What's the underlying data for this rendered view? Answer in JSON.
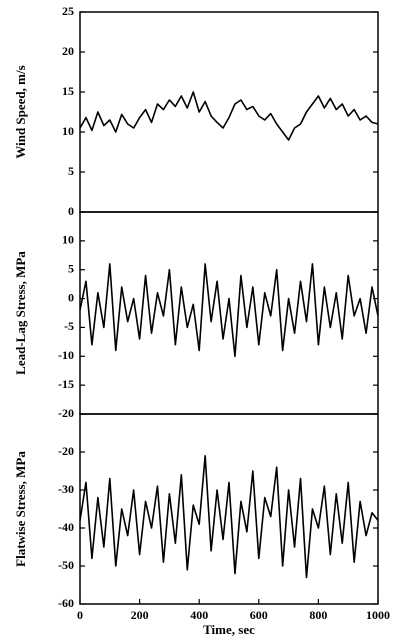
{
  "chart_data": [
    {
      "type": "line",
      "ylabel": "Wind Speed, m/s",
      "color": "#000000",
      "x": [
        0,
        20,
        40,
        60,
        80,
        100,
        120,
        140,
        160,
        180,
        200,
        220,
        240,
        260,
        280,
        300,
        320,
        340,
        360,
        380,
        400,
        420,
        440,
        460,
        480,
        500,
        520,
        540,
        560,
        580,
        600,
        620,
        640,
        660,
        680,
        700,
        720,
        740,
        760,
        780,
        800,
        820,
        840,
        860,
        880,
        900,
        920,
        940,
        960,
        980,
        1000
      ],
      "values": [
        10.5,
        11.8,
        10.2,
        12.5,
        10.8,
        11.5,
        10.0,
        12.2,
        11.0,
        10.5,
        11.8,
        12.8,
        11.2,
        13.5,
        12.8,
        14.0,
        13.2,
        14.5,
        13.0,
        15.0,
        12.5,
        13.8,
        12.0,
        11.2,
        10.5,
        11.8,
        13.5,
        14.0,
        12.8,
        13.2,
        12.0,
        11.5,
        12.3,
        11.0,
        10.0,
        9.0,
        10.5,
        11.0,
        12.5,
        13.5,
        14.5,
        13.0,
        14.2,
        12.8,
        13.5,
        12.0,
        12.8,
        11.5,
        12.0,
        11.2,
        11.0
      ],
      "xlim": [
        0,
        1000
      ],
      "ylim": [
        0,
        25
      ],
      "yticks": [
        0,
        5,
        10,
        15,
        20,
        25
      ]
    },
    {
      "type": "line",
      "ylabel": "Lead-Lag Stress, MPa",
      "color": "#000000",
      "x": [
        0,
        20,
        40,
        60,
        80,
        100,
        120,
        140,
        160,
        180,
        200,
        220,
        240,
        260,
        280,
        300,
        320,
        340,
        360,
        380,
        400,
        420,
        440,
        460,
        480,
        500,
        520,
        540,
        560,
        580,
        600,
        620,
        640,
        660,
        680,
        700,
        720,
        740,
        760,
        780,
        800,
        820,
        840,
        860,
        880,
        900,
        920,
        940,
        960,
        980,
        1000
      ],
      "values": [
        -2,
        3,
        -8,
        1,
        -5,
        6,
        -9,
        2,
        -4,
        0,
        -7,
        4,
        -6,
        1,
        -3,
        5,
        -8,
        2,
        -5,
        -1,
        -9,
        6,
        -4,
        3,
        -7,
        0,
        -10,
        4,
        -5,
        2,
        -8,
        1,
        -3,
        5,
        -9,
        0,
        -6,
        3,
        -4,
        6,
        -8,
        2,
        -5,
        1,
        -7,
        4,
        -3,
        0,
        -6,
        2,
        -3
      ],
      "xlim": [
        0,
        1000
      ],
      "ylim": [
        -20,
        15
      ],
      "yticks": [
        -20,
        -15,
        -10,
        -5,
        0,
        5,
        10
      ]
    },
    {
      "type": "line",
      "ylabel": "Flatwise Stress, MPa",
      "xlabel": "Time, sec",
      "color": "#000000",
      "x": [
        0,
        20,
        40,
        60,
        80,
        100,
        120,
        140,
        160,
        180,
        200,
        220,
        240,
        260,
        280,
        300,
        320,
        340,
        360,
        380,
        400,
        420,
        440,
        460,
        480,
        500,
        520,
        540,
        560,
        580,
        600,
        620,
        640,
        660,
        680,
        700,
        720,
        740,
        760,
        780,
        800,
        820,
        840,
        860,
        880,
        900,
        920,
        940,
        960,
        980,
        1000
      ],
      "values": [
        -38,
        -28,
        -48,
        -32,
        -45,
        -27,
        -50,
        -35,
        -42,
        -30,
        -47,
        -33,
        -40,
        -29,
        -49,
        -31,
        -44,
        -26,
        -51,
        -34,
        -39,
        -21,
        -46,
        -30,
        -43,
        -28,
        -52,
        -33,
        -41,
        -25,
        -48,
        -32,
        -37,
        -24,
        -50,
        -30,
        -45,
        -27,
        -53,
        -35,
        -40,
        -29,
        -47,
        -31,
        -44,
        -28,
        -49,
        -33,
        -42,
        -36,
        -38
      ],
      "xlim": [
        0,
        1000
      ],
      "ylim": [
        -60,
        -10
      ],
      "yticks": [
        -60,
        -50,
        -40,
        -30,
        -20
      ],
      "xticks": [
        0,
        200,
        400,
        600,
        800,
        1000
      ]
    }
  ]
}
